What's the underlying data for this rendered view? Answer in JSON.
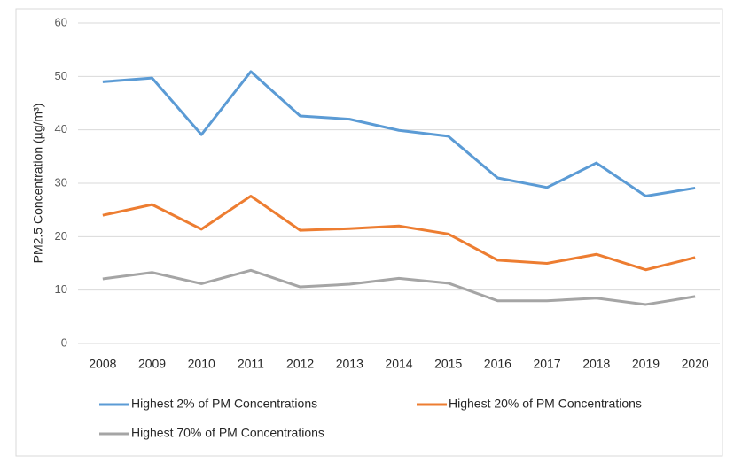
{
  "chart_data": {
    "type": "line",
    "y_label": "PM2.5 Concentration (µg/m³)",
    "categories": [
      "2008",
      "2009",
      "2010",
      "2011",
      "2012",
      "2013",
      "2014",
      "2015",
      "2016",
      "2017",
      "2018",
      "2019",
      "2020"
    ],
    "series": [
      {
        "name": "Highest 2% of PM Concentrations",
        "color": "#5b9bd5",
        "values": [
          49.0,
          49.7,
          39.1,
          50.9,
          42.6,
          42.0,
          39.9,
          38.8,
          31.0,
          29.2,
          33.8,
          27.6,
          29.1
        ]
      },
      {
        "name": "Highest 20% of PM Concentrations",
        "color": "#ed7d31",
        "values": [
          24.0,
          26.0,
          21.4,
          27.6,
          21.2,
          21.5,
          22.0,
          20.5,
          15.6,
          15.0,
          16.7,
          13.8,
          16.1
        ]
      },
      {
        "name": "Highest 70% of PM Concentrations",
        "color": "#a5a5a5",
        "values": [
          12.1,
          13.3,
          11.2,
          13.7,
          10.6,
          11.1,
          12.2,
          11.3,
          8.0,
          8.0,
          8.5,
          7.3,
          8.8
        ]
      }
    ],
    "ylim": [
      0,
      60
    ],
    "yticks": [
      0,
      10,
      20,
      30,
      40,
      50,
      60
    ],
    "grid": true
  }
}
